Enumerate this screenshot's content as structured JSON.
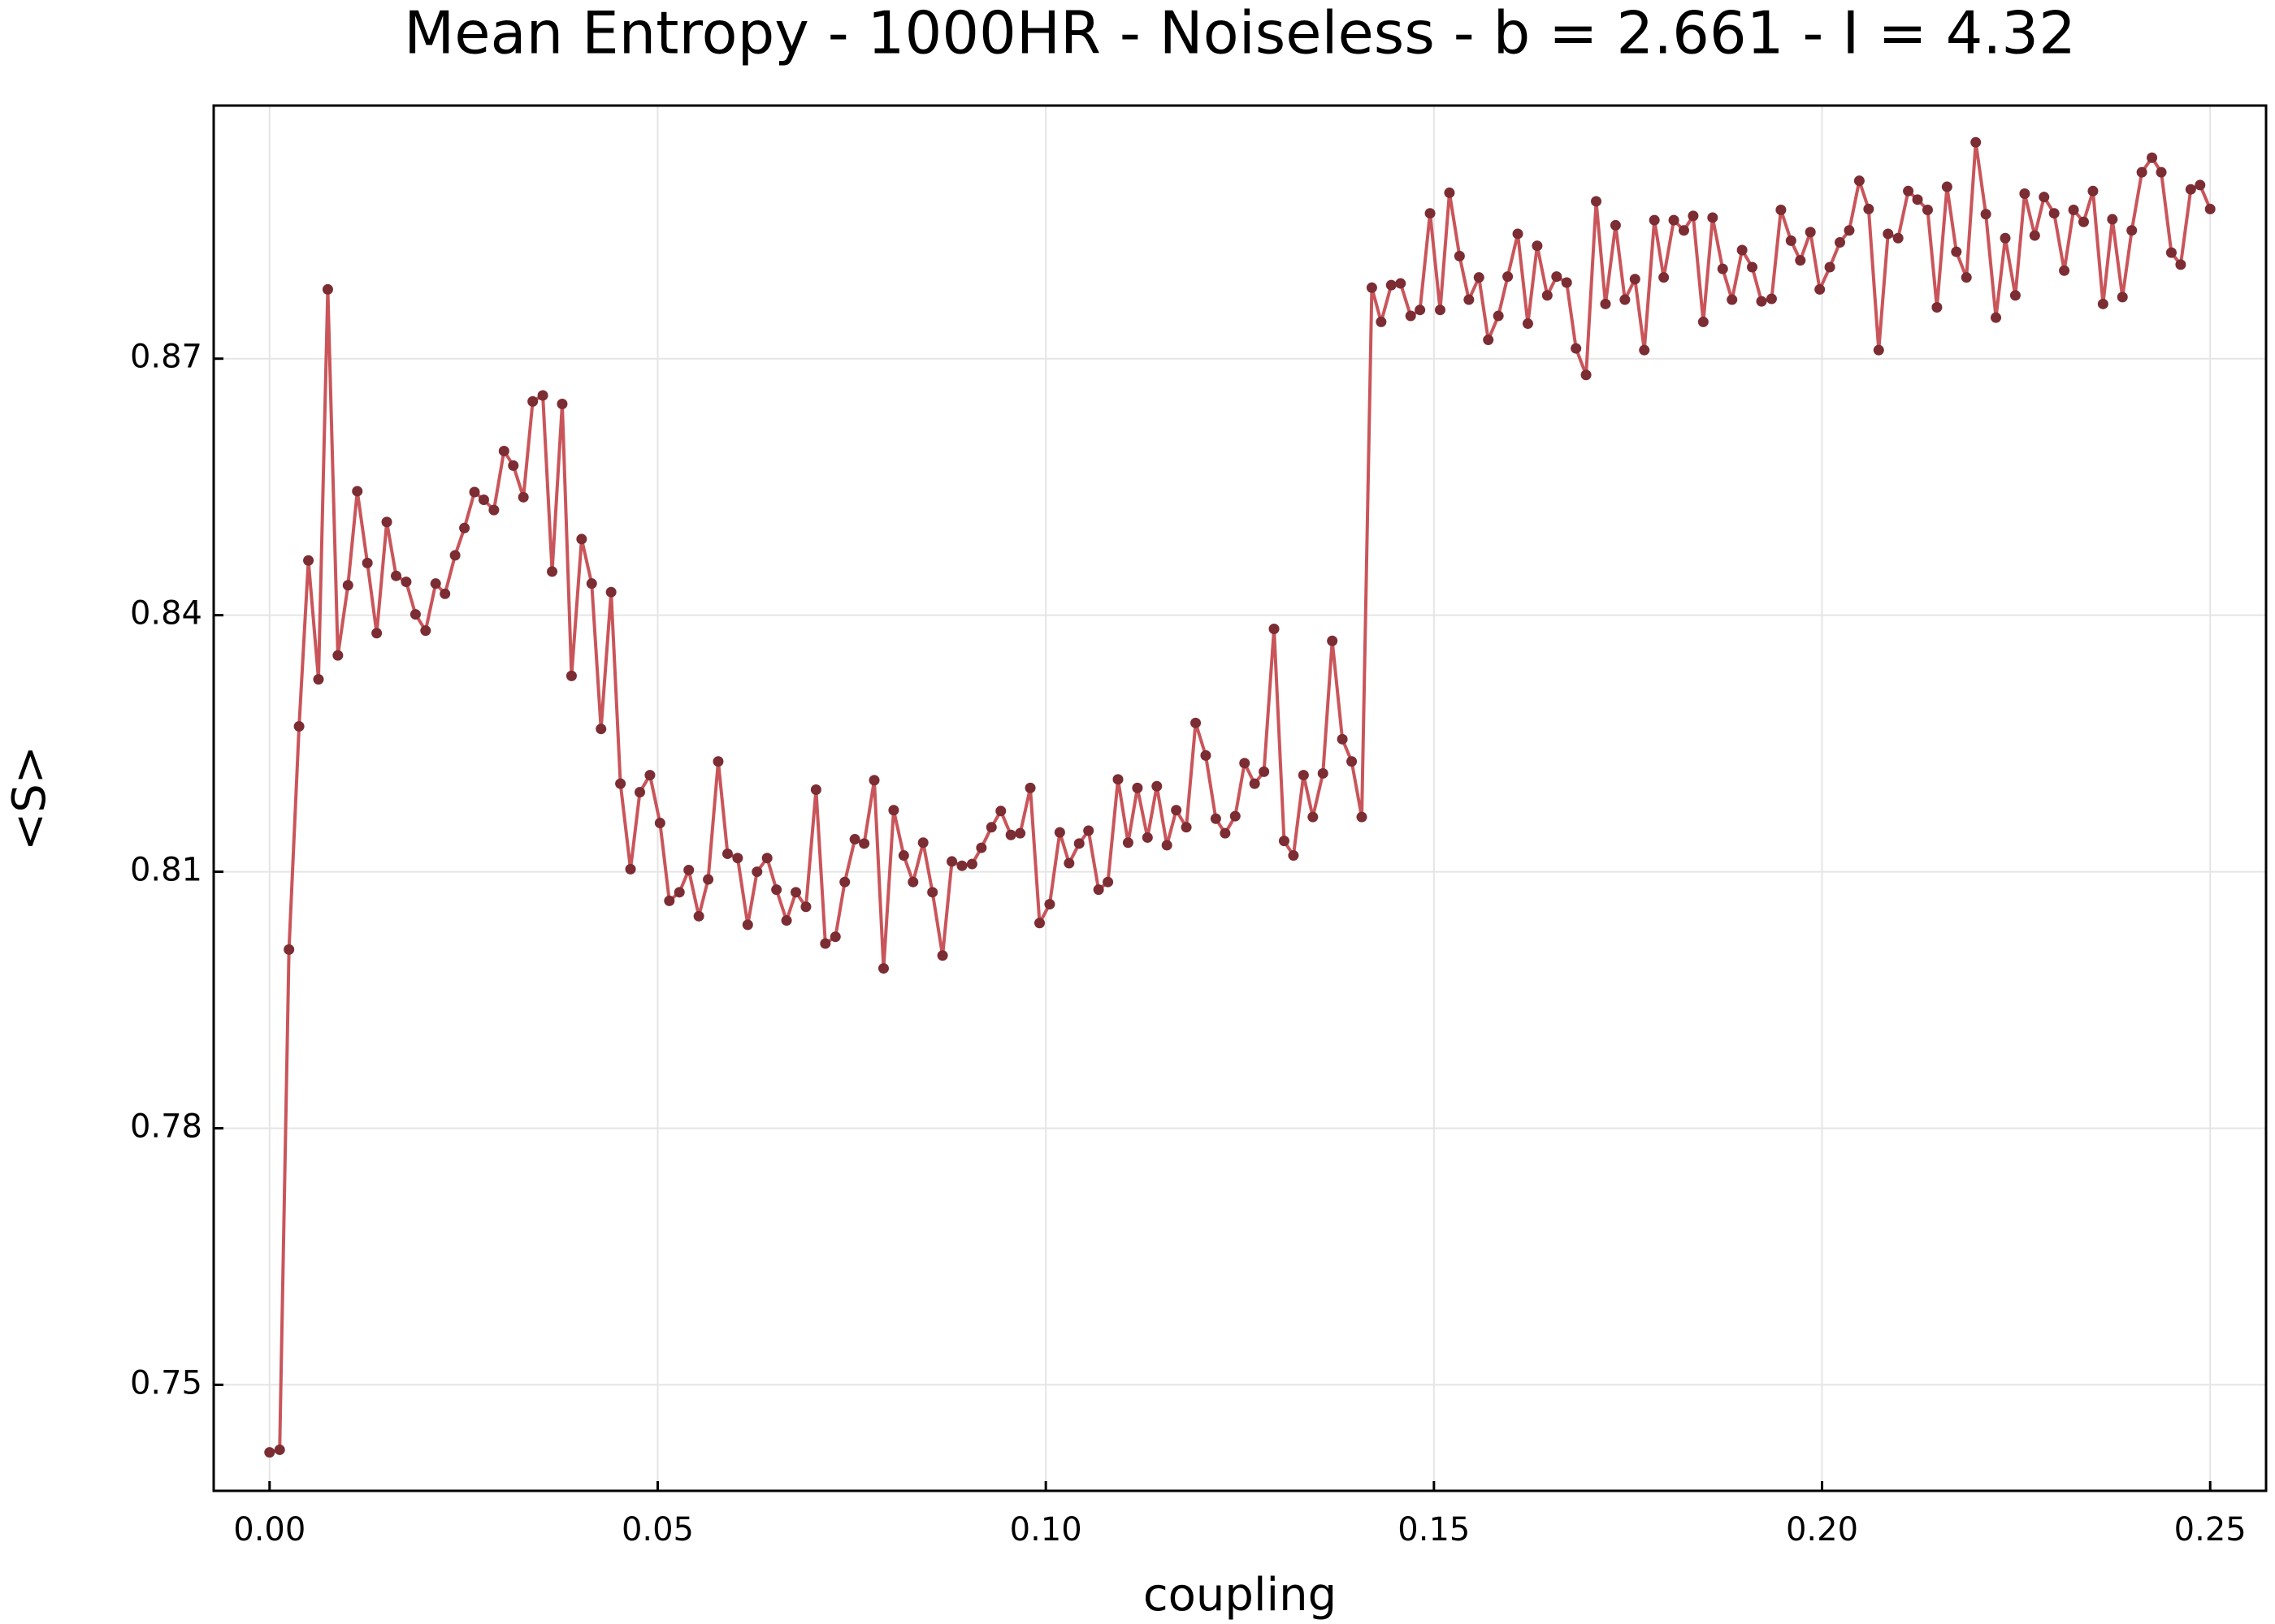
{
  "chart_data": {
    "type": "line",
    "title": "Mean Entropy - 1000HR - Noiseless - b = 2.661 - I = 4.32",
    "x_label": "coupling",
    "y_label": "<S>",
    "color": "#c9555a",
    "marker_color": "#7b2d33",
    "grid": true,
    "xlim": [
      -0.0072,
      0.2572
    ],
    "ylim": [
      0.7376,
      0.8996
    ],
    "xticks": [
      {
        "value": 0,
        "label": "0.00"
      },
      {
        "value": 0.05,
        "label": "0.05"
      },
      {
        "value": 0.1,
        "label": "0.10"
      },
      {
        "value": 0.15,
        "label": "0.15"
      },
      {
        "value": 0.2,
        "label": "0.20"
      },
      {
        "value": 0.25,
        "label": "0.25"
      }
    ],
    "yticks": [
      0.75,
      0.78,
      0.81,
      0.84,
      0.87
    ],
    "x": [
      0,
      0.0013,
      0.0025,
      0.0038,
      0.005,
      0.0063,
      0.0075,
      0.0088,
      0.0101,
      0.0113,
      0.0126,
      0.0138,
      0.0151,
      0.0163,
      0.0176,
      0.0188,
      0.0201,
      0.0214,
      0.0226,
      0.0239,
      0.0251,
      0.0264,
      0.0276,
      0.0289,
      0.0302,
      0.0314,
      0.0327,
      0.0339,
      0.0352,
      0.0364,
      0.0377,
      0.0389,
      0.0402,
      0.0415,
      0.0427,
      0.044,
      0.0452,
      0.0465,
      0.0477,
      0.049,
      0.0503,
      0.0515,
      0.0528,
      0.054,
      0.0553,
      0.0565,
      0.0578,
      0.059,
      0.0603,
      0.0616,
      0.0628,
      0.0641,
      0.0653,
      0.0666,
      0.0678,
      0.0691,
      0.0704,
      0.0716,
      0.0729,
      0.0741,
      0.0754,
      0.0766,
      0.0779,
      0.0791,
      0.0804,
      0.0817,
      0.0829,
      0.0842,
      0.0854,
      0.0867,
      0.0879,
      0.0892,
      0.0905,
      0.0917,
      0.093,
      0.0942,
      0.0955,
      0.0967,
      0.098,
      0.0992,
      0.1005,
      0.1018,
      0.103,
      0.1043,
      0.1055,
      0.1068,
      0.108,
      0.1093,
      0.1106,
      0.1118,
      0.1131,
      0.1143,
      0.1156,
      0.1168,
      0.1181,
      0.1193,
      0.1206,
      0.1219,
      0.1231,
      0.1244,
      0.1256,
      0.1269,
      0.1281,
      0.1294,
      0.1307,
      0.1319,
      0.1332,
      0.1344,
      0.1357,
      0.1369,
      0.1382,
      0.1394,
      0.1407,
      0.142,
      0.1432,
      0.1445,
      0.1457,
      0.147,
      0.1482,
      0.1495,
      0.1508,
      0.152,
      0.1533,
      0.1545,
      0.1558,
      0.157,
      0.1583,
      0.1595,
      0.1608,
      0.1621,
      0.1633,
      0.1646,
      0.1658,
      0.1671,
      0.1683,
      0.1696,
      0.1709,
      0.1721,
      0.1734,
      0.1746,
      0.1759,
      0.1771,
      0.1784,
      0.1796,
      0.1809,
      0.1822,
      0.1834,
      0.1847,
      0.1859,
      0.1872,
      0.1884,
      0.1897,
      0.191,
      0.1922,
      0.1935,
      0.1947,
      0.196,
      0.1972,
      0.1985,
      0.1997,
      0.201,
      0.2023,
      0.2035,
      0.2048,
      0.206,
      0.2073,
      0.2085,
      0.2098,
      0.2111,
      0.2123,
      0.2136,
      0.2148,
      0.2161,
      0.2173,
      0.2186,
      0.2198,
      0.2211,
      0.2224,
      0.2236,
      0.2249,
      0.2261,
      0.2274,
      0.2286,
      0.2299,
      0.2312,
      0.2324,
      0.2337,
      0.2349,
      0.2362,
      0.2374,
      0.2387,
      0.2399,
      0.2412,
      0.2425,
      0.2437,
      0.245,
      0.2462,
      0.2475,
      0.2487,
      0.25
    ],
    "values": [
      0.7421,
      0.7424,
      0.8009,
      0.827,
      0.8464,
      0.8325,
      0.8781,
      0.8353,
      0.8435,
      0.8545,
      0.8461,
      0.8379,
      0.8509,
      0.8446,
      0.8439,
      0.8401,
      0.8382,
      0.8437,
      0.8425,
      0.847,
      0.8502,
      0.8544,
      0.8535,
      0.8523,
      0.8592,
      0.8575,
      0.8538,
      0.865,
      0.8657,
      0.8451,
      0.8647,
      0.8329,
      0.8489,
      0.8437,
      0.8267,
      0.8427,
      0.8203,
      0.8103,
      0.8193,
      0.8213,
      0.8157,
      0.8066,
      0.8076,
      0.8102,
      0.8048,
      0.8091,
      0.8229,
      0.8121,
      0.8116,
      0.8038,
      0.81,
      0.8116,
      0.8079,
      0.8043,
      0.8076,
      0.8059,
      0.8196,
      0.8016,
      0.8024,
      0.8088,
      0.8138,
      0.8133,
      0.8207,
      0.7987,
      0.8172,
      0.8119,
      0.8088,
      0.8134,
      0.8076,
      0.8002,
      0.8112,
      0.8107,
      0.8109,
      0.8128,
      0.8152,
      0.8171,
      0.8143,
      0.8145,
      0.8198,
      0.804,
      0.8062,
      0.8146,
      0.811,
      0.8133,
      0.8148,
      0.8079,
      0.8088,
      0.8208,
      0.8134,
      0.8198,
      0.814,
      0.82,
      0.8131,
      0.8172,
      0.8152,
      0.8274,
      0.8236,
      0.8162,
      0.8145,
      0.8165,
      0.8227,
      0.8203,
      0.8217,
      0.8384,
      0.8136,
      0.8119,
      0.8213,
      0.8164,
      0.8215,
      0.837,
      0.8255,
      0.8229,
      0.8164,
      0.8783,
      0.8743,
      0.8786,
      0.8788,
      0.875,
      0.8757,
      0.887,
      0.8757,
      0.8894,
      0.882,
      0.8769,
      0.8795,
      0.8722,
      0.875,
      0.8796,
      0.8846,
      0.8741,
      0.8832,
      0.8774,
      0.8796,
      0.8789,
      0.8712,
      0.8681,
      0.8884,
      0.8764,
      0.8856,
      0.8769,
      0.8793,
      0.871,
      0.8862,
      0.8795,
      0.8862,
      0.885,
      0.8867,
      0.8743,
      0.8865,
      0.8805,
      0.8769,
      0.8827,
      0.8807,
      0.8767,
      0.877,
      0.8874,
      0.8838,
      0.8815,
      0.8848,
      0.8781,
      0.8807,
      0.8836,
      0.885,
      0.8908,
      0.8875,
      0.871,
      0.8846,
      0.8841,
      0.8896,
      0.8886,
      0.8874,
      0.876,
      0.8901,
      0.8825,
      0.8795,
      0.8953,
      0.8869,
      0.8748,
      0.8841,
      0.8774,
      0.8893,
      0.8844,
      0.8889,
      0.887,
      0.8803,
      0.8874,
      0.886,
      0.8896,
      0.8764,
      0.8863,
      0.8772,
      0.885,
      0.8918,
      0.8935,
      0.8918,
      0.8824,
      0.881,
      0.8898,
      0.8903,
      0.8875
    ]
  }
}
